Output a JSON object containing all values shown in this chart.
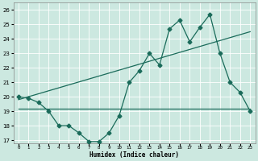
{
  "title": "",
  "xlabel": "Humidex (Indice chaleur)",
  "ylabel": "",
  "xlim": [
    -0.5,
    23.5
  ],
  "ylim": [
    16.8,
    26.5
  ],
  "yticks": [
    17,
    18,
    19,
    20,
    21,
    22,
    23,
    24,
    25,
    26
  ],
  "xticks": [
    0,
    1,
    2,
    3,
    4,
    5,
    6,
    7,
    8,
    9,
    10,
    11,
    12,
    13,
    14,
    15,
    16,
    17,
    18,
    19,
    20,
    21,
    22,
    23
  ],
  "bg_color": "#cce8e0",
  "line_color": "#1a6b5a",
  "grid_color": "#ffffff",
  "series1_x": [
    0,
    1,
    2,
    3,
    4,
    5,
    6,
    7,
    8,
    9,
    10,
    11,
    12,
    13,
    14,
    15,
    16,
    17,
    18,
    19,
    20,
    21,
    22,
    23
  ],
  "series1_y": [
    20.0,
    19.9,
    19.6,
    19.0,
    18.0,
    18.0,
    17.5,
    16.9,
    16.9,
    17.5,
    18.7,
    21.0,
    21.8,
    23.0,
    22.2,
    24.7,
    25.3,
    23.8,
    24.8,
    25.7,
    23.0,
    21.0,
    20.3,
    19.0
  ],
  "series2_x": [
    0,
    23
  ],
  "series2_y": [
    19.8,
    24.5
  ],
  "series3_x": [
    0,
    23
  ],
  "series3_y": [
    19.2,
    19.2
  ],
  "marker_size": 2.5,
  "linewidth": 0.9
}
